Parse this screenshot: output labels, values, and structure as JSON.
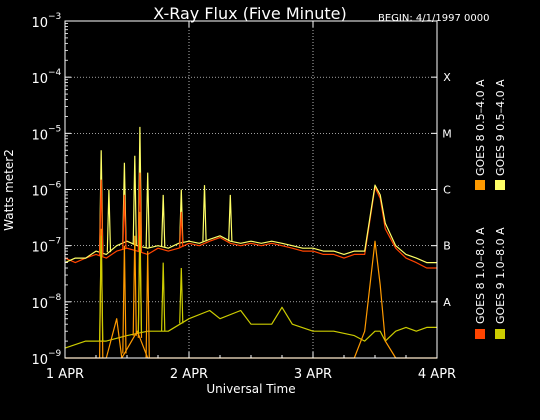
{
  "chart_data": {
    "type": "line",
    "title": "X-Ray Flux (Five Minute)",
    "begin_label": "BEGIN: 4/1/1997 0000",
    "xlabel": "Universal Time",
    "ylabel": "Watts meter2",
    "y_scale": "log",
    "ylim": [
      1e-09,
      0.001
    ],
    "xlim": [
      0,
      72
    ],
    "x_unit": "hours since 1 APR 1997 0000 UT",
    "grid": "dotted",
    "x_ticks": [
      {
        "label": "1 APR",
        "x": 0
      },
      {
        "label": "2 APR",
        "x": 24
      },
      {
        "label": "3 APR",
        "x": 48
      },
      {
        "label": "4 APR",
        "x": 72
      }
    ],
    "y_ticks": [
      {
        "mantissa": "10",
        "exponent": "−9",
        "value": 1e-09
      },
      {
        "mantissa": "10",
        "exponent": "−8",
        "value": 1e-08
      },
      {
        "mantissa": "10",
        "exponent": "−7",
        "value": 1e-07
      },
      {
        "mantissa": "10",
        "exponent": "−6",
        "value": 1e-06
      },
      {
        "mantissa": "10",
        "exponent": "−5",
        "value": 1e-05
      },
      {
        "mantissa": "10",
        "exponent": "−4",
        "value": 0.0001
      },
      {
        "mantissa": "10",
        "exponent": "−3",
        "value": 0.001
      }
    ],
    "flare_classes": [
      {
        "label": "A",
        "value": 1e-08
      },
      {
        "label": "B",
        "value": 1e-07
      },
      {
        "label": "C",
        "value": 1e-06
      },
      {
        "label": "M",
        "value": 1e-05
      },
      {
        "label": "X",
        "value": 0.0001
      }
    ],
    "legend_placement": "right, vertical",
    "series": [
      {
        "name": "GOES 8 1.0–8.0 A",
        "color": "#ff4400",
        "points": [
          [
            0,
            6e-08
          ],
          [
            2,
            5e-08
          ],
          [
            4,
            6e-08
          ],
          [
            6,
            7e-08
          ],
          [
            8,
            6e-08
          ],
          [
            10,
            8e-08
          ],
          [
            12,
            9e-08
          ],
          [
            14,
            8e-08
          ],
          [
            16,
            7e-08
          ],
          [
            18,
            9e-08
          ],
          [
            20,
            8e-08
          ],
          [
            22,
            9e-08
          ],
          [
            24,
            1.1e-07
          ],
          [
            26,
            1e-07
          ],
          [
            28,
            1.2e-07
          ],
          [
            30,
            1.4e-07
          ],
          [
            32,
            1.1e-07
          ],
          [
            34,
            1e-07
          ],
          [
            36,
            1.1e-07
          ],
          [
            38,
            1e-07
          ],
          [
            40,
            1.1e-07
          ],
          [
            42,
            1e-07
          ],
          [
            44,
            9e-08
          ],
          [
            46,
            8e-08
          ],
          [
            48,
            8e-08
          ],
          [
            50,
            7e-08
          ],
          [
            52,
            7e-08
          ],
          [
            54,
            6e-08
          ],
          [
            56,
            7e-08
          ],
          [
            58,
            7e-08
          ],
          [
            60,
            1.1e-06
          ],
          [
            61,
            7e-07
          ],
          [
            62,
            2e-07
          ],
          [
            64,
            9e-08
          ],
          [
            66,
            6e-08
          ],
          [
            68,
            5e-08
          ],
          [
            70,
            4e-08
          ],
          [
            72,
            4e-08
          ]
        ]
      },
      {
        "name": "GOES 8 0.5–4.0 A",
        "color": "#ff9a00",
        "points": [
          [
            0,
            1e-09
          ],
          [
            8,
            1e-09
          ],
          [
            10,
            5e-09
          ],
          [
            11,
            1e-09
          ],
          [
            14,
            3e-09
          ],
          [
            16,
            1e-09
          ],
          [
            20,
            1e-09
          ],
          [
            24,
            1e-09
          ],
          [
            32,
            1e-09
          ],
          [
            40,
            1e-09
          ],
          [
            48,
            1e-09
          ],
          [
            56,
            1e-09
          ],
          [
            58,
            3e-09
          ],
          [
            60,
            1.2e-07
          ],
          [
            61,
            2e-08
          ],
          [
            62,
            2e-09
          ],
          [
            64,
            1e-09
          ],
          [
            72,
            1e-09
          ]
        ]
      },
      {
        "name": "GOES 9 0.5–4.0 A",
        "color": "#ffff66",
        "points": [
          [
            0,
            5e-08
          ],
          [
            2,
            6e-08
          ],
          [
            4,
            6e-08
          ],
          [
            6,
            8e-08
          ],
          [
            8,
            7e-08
          ],
          [
            10,
            1e-07
          ],
          [
            12,
            1.2e-07
          ],
          [
            14,
            1e-07
          ],
          [
            16,
            9e-08
          ],
          [
            18,
            1e-07
          ],
          [
            20,
            9e-08
          ],
          [
            22,
            1.1e-07
          ],
          [
            24,
            1.2e-07
          ],
          [
            26,
            1.1e-07
          ],
          [
            28,
            1.3e-07
          ],
          [
            30,
            1.5e-07
          ],
          [
            32,
            1.2e-07
          ],
          [
            34,
            1.1e-07
          ],
          [
            36,
            1.2e-07
          ],
          [
            38,
            1.1e-07
          ],
          [
            40,
            1.2e-07
          ],
          [
            42,
            1.1e-07
          ],
          [
            44,
            1e-07
          ],
          [
            46,
            9e-08
          ],
          [
            48,
            9e-08
          ],
          [
            50,
            8e-08
          ],
          [
            52,
            8e-08
          ],
          [
            54,
            7e-08
          ],
          [
            56,
            8e-08
          ],
          [
            58,
            8e-08
          ],
          [
            60,
            1.2e-06
          ],
          [
            61,
            8e-07
          ],
          [
            62,
            2.5e-07
          ],
          [
            64,
            1e-07
          ],
          [
            66,
            7e-08
          ],
          [
            68,
            6e-08
          ],
          [
            70,
            5e-08
          ],
          [
            72,
            5e-08
          ]
        ]
      },
      {
        "name": "GOES 9 1.0–8.0 A",
        "color": "#cccc00",
        "points": [
          [
            0,
            1.5e-09
          ],
          [
            4,
            2e-09
          ],
          [
            8,
            2e-09
          ],
          [
            12,
            2.5e-09
          ],
          [
            16,
            3e-09
          ],
          [
            20,
            3e-09
          ],
          [
            24,
            5e-09
          ],
          [
            28,
            7e-09
          ],
          [
            30,
            5e-09
          ],
          [
            34,
            7e-09
          ],
          [
            36,
            4e-09
          ],
          [
            40,
            4e-09
          ],
          [
            42,
            8e-09
          ],
          [
            44,
            4e-09
          ],
          [
            48,
            3e-09
          ],
          [
            52,
            3e-09
          ],
          [
            56,
            2.5e-09
          ],
          [
            58,
            2e-09
          ],
          [
            60,
            3e-09
          ],
          [
            61,
            3e-09
          ],
          [
            62,
            2e-09
          ],
          [
            64,
            3e-09
          ],
          [
            66,
            3.5e-09
          ],
          [
            68,
            3e-09
          ],
          [
            70,
            3.5e-09
          ],
          [
            72,
            3.5e-09
          ]
        ]
      }
    ],
    "spikes": [
      {
        "series": 2,
        "x": 7,
        "y": 5e-06
      },
      {
        "series": 2,
        "x": 8.5,
        "y": 1e-06
      },
      {
        "series": 2,
        "x": 11.5,
        "y": 3e-06
      },
      {
        "series": 2,
        "x": 13.5,
        "y": 4e-06
      },
      {
        "series": 2,
        "x": 14.5,
        "y": 1.3e-05
      },
      {
        "series": 2,
        "x": 16,
        "y": 2e-06
      },
      {
        "series": 2,
        "x": 19,
        "y": 8e-07
      },
      {
        "series": 2,
        "x": 22.5,
        "y": 1e-06
      },
      {
        "series": 2,
        "x": 27,
        "y": 1.2e-06
      },
      {
        "series": 2,
        "x": 32,
        "y": 8e-07
      },
      {
        "series": 0,
        "x": 7,
        "y": 1.5e-06
      },
      {
        "series": 0,
        "x": 11.5,
        "y": 8e-07
      },
      {
        "series": 0,
        "x": 14.5,
        "y": 2e-06
      },
      {
        "series": 0,
        "x": 22.5,
        "y": 4e-07
      },
      {
        "series": 1,
        "x": 7,
        "y": 2e-07
      },
      {
        "series": 1,
        "x": 11.5,
        "y": 1e-07
      },
      {
        "series": 1,
        "x": 13.5,
        "y": 1.5e-07
      },
      {
        "series": 1,
        "x": 14.5,
        "y": 4e-07
      },
      {
        "series": 1,
        "x": 16,
        "y": 8e-08
      },
      {
        "series": 3,
        "x": 7,
        "y": 1.5e-07
      },
      {
        "series": 3,
        "x": 14.5,
        "y": 1.5e-07
      },
      {
        "series": 3,
        "x": 19,
        "y": 5e-08
      },
      {
        "series": 3,
        "x": 22.5,
        "y": 4e-08
      }
    ]
  }
}
